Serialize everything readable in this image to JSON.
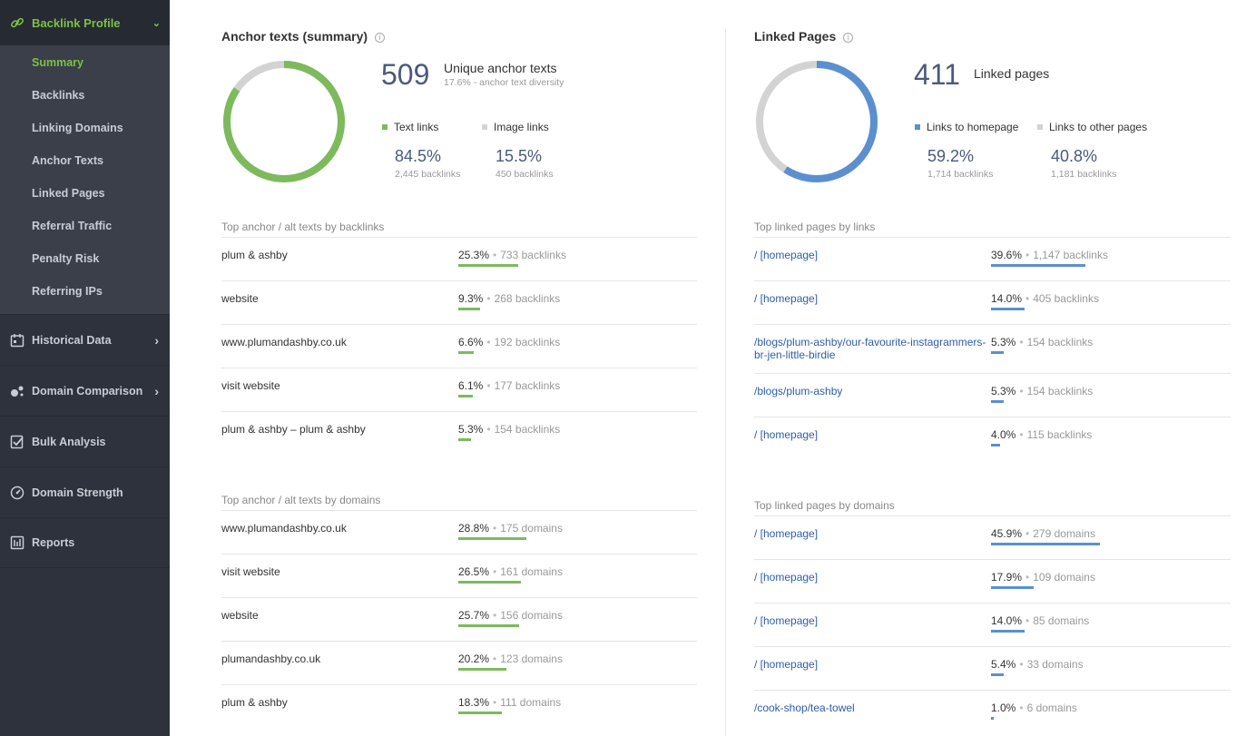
{
  "sidebar": {
    "section_title": "Backlink Profile",
    "sub_items": [
      {
        "label": "Summary",
        "active": true
      },
      {
        "label": "Backlinks"
      },
      {
        "label": "Linking Domains"
      },
      {
        "label": "Anchor Texts"
      },
      {
        "label": "Linked Pages"
      },
      {
        "label": "Referral Traffic"
      },
      {
        "label": "Penalty Risk"
      },
      {
        "label": "Referring IPs"
      }
    ],
    "main_items": [
      {
        "label": "Historical Data",
        "icon": "calendar-icon"
      },
      {
        "label": "Domain Comparison",
        "icon": "bubbles-icon"
      },
      {
        "label": "Bulk Analysis",
        "icon": "checklist-icon"
      },
      {
        "label": "Domain Strength",
        "icon": "gauge-icon"
      },
      {
        "label": "Reports",
        "icon": "report-icon"
      }
    ]
  },
  "anchor": {
    "title": "Anchor texts (summary)",
    "count": "509",
    "count_label": "Unique anchor texts",
    "diversity": "17.6% - anchor text diversity",
    "legend_a": "Text links",
    "legend_b": "Image links",
    "pct_a": "84.5%",
    "pct_b": "15.5%",
    "sub_a": "2,445 backlinks",
    "sub_b": "450 backlinks",
    "donut_fraction_a": 0.845,
    "color_a": "#7cba5c",
    "color_b": "#d3d3d3",
    "by_backlinks_title": "Top anchor / alt texts by backlinks",
    "by_backlinks": [
      {
        "name": "plum & ashby",
        "pct": "25.3%",
        "count": "733 backlinks",
        "fraction": 0.253
      },
      {
        "name": "website",
        "pct": "9.3%",
        "count": "268 backlinks",
        "fraction": 0.093
      },
      {
        "name": "www.plumandashby.co.uk",
        "pct": "6.6%",
        "count": "192 backlinks",
        "fraction": 0.066
      },
      {
        "name": "visit website",
        "pct": "6.1%",
        "count": "177 backlinks",
        "fraction": 0.061
      },
      {
        "name": "plum & ashby – plum & ashby",
        "pct": "5.3%",
        "count": "154 backlinks",
        "fraction": 0.053
      }
    ],
    "by_domains_title": "Top anchor / alt texts by domains",
    "by_domains": [
      {
        "name": "www.plumandashby.co.uk",
        "pct": "28.8%",
        "count": "175 domains",
        "fraction": 0.288
      },
      {
        "name": "visit website",
        "pct": "26.5%",
        "count": "161 domains",
        "fraction": 0.265
      },
      {
        "name": "website",
        "pct": "25.7%",
        "count": "156 domains",
        "fraction": 0.257
      },
      {
        "name": "plumandashby.co.uk",
        "pct": "20.2%",
        "count": "123 domains",
        "fraction": 0.202
      },
      {
        "name": "plum & ashby",
        "pct": "18.3%",
        "count": "111 domains",
        "fraction": 0.183
      }
    ]
  },
  "linked": {
    "title": "Linked Pages",
    "count": "411",
    "count_label": "Linked pages",
    "legend_a": "Links to homepage",
    "legend_b": "Links to other pages",
    "pct_a": "59.2%",
    "pct_b": "40.8%",
    "sub_a": "1,714 backlinks",
    "sub_b": "1,181 backlinks",
    "donut_fraction_a": 0.592,
    "color_a": "#5b8fcf",
    "color_b": "#d3d3d3",
    "by_links_title": "Top linked pages by links",
    "by_links": [
      {
        "name": "/ [homepage]",
        "pct": "39.6%",
        "count": "1,147 backlinks",
        "fraction": 0.396
      },
      {
        "name": "/ [homepage]",
        "pct": "14.0%",
        "count": "405 backlinks",
        "fraction": 0.14
      },
      {
        "name": "/blogs/plum-ashby/our-favourite-instagrammers-br-jen-little-birdie",
        "pct": "5.3%",
        "count": "154 backlinks",
        "fraction": 0.053
      },
      {
        "name": "/blogs/plum-ashby",
        "pct": "5.3%",
        "count": "154 backlinks",
        "fraction": 0.053
      },
      {
        "name": "/ [homepage]",
        "pct": "4.0%",
        "count": "115 backlinks",
        "fraction": 0.04
      }
    ],
    "by_domains_title": "Top linked pages by domains",
    "by_domains": [
      {
        "name": "/ [homepage]",
        "pct": "45.9%",
        "count": "279 domains",
        "fraction": 0.459
      },
      {
        "name": "/ [homepage]",
        "pct": "17.9%",
        "count": "109 domains",
        "fraction": 0.179
      },
      {
        "name": "/ [homepage]",
        "pct": "14.0%",
        "count": "85 domains",
        "fraction": 0.14
      },
      {
        "name": "/ [homepage]",
        "pct": "5.4%",
        "count": "33 domains",
        "fraction": 0.054
      },
      {
        "name": "/cook-shop/tea-towel",
        "pct": "1.0%",
        "count": "6 domains",
        "fraction": 0.01
      }
    ]
  }
}
